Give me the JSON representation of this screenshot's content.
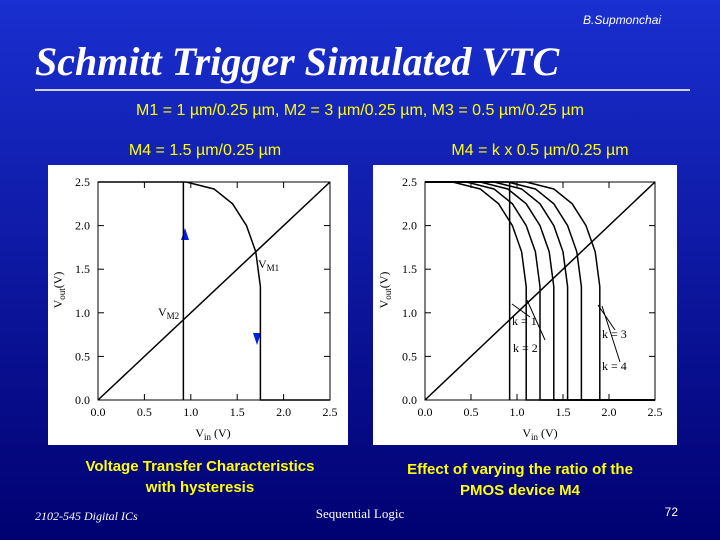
{
  "header": {
    "author": "B.Supmonchai",
    "title": "Schmitt Trigger Simulated VTC",
    "subtitle": "M1 = 1 µm/0.25 µm, M2 = 3 µm/0.25 µm, M3 = 0.5 µm/0.25 µm"
  },
  "chart_data": [
    {
      "type": "line",
      "title": "M4 = 1.5 µm/0.25 µm",
      "xlabel": {
        "symbol": "V",
        "subscript": "in",
        "unit": " (V)"
      },
      "ylabel": {
        "symbol": "V",
        "subscript": "out",
        "unit": "(V)"
      },
      "xlim": [
        0,
        2.5
      ],
      "ylim": [
        0,
        2.5
      ],
      "xticks": [
        {
          "value": 0,
          "label": "0.0"
        },
        0.5,
        {
          "value": 1,
          "label": "1.0"
        },
        1.5,
        {
          "value": 2,
          "label": "2.0"
        },
        2.5
      ],
      "yticks": [
        {
          "value": 0,
          "label": "0.0"
        },
        0.5,
        {
          "value": 1,
          "label": "1.0"
        },
        1.5,
        {
          "value": 2,
          "label": "2.0"
        },
        2.5
      ],
      "series": [
        {
          "color": "#000000",
          "x": [
            0,
            2.5
          ],
          "values": [
            0,
            2.5
          ]
        },
        {
          "color": "#000000",
          "x": [
            0,
            0.95,
            1.25,
            1.45,
            1.6,
            1.7,
            1.75,
            1.75,
            2.5
          ],
          "values": [
            2.5,
            2.5,
            2.42,
            2.25,
            2.0,
            1.7,
            1.3,
            0,
            0
          ]
        },
        {
          "color": "#000000",
          "x": [
            0.92,
            0.92
          ],
          "values": [
            2.5,
            0
          ]
        }
      ],
      "annotations": [
        {
          "symbol": "V",
          "subscript": "M1"
        },
        {
          "symbol": "V",
          "subscript": "M2"
        }
      ],
      "caption": [
        "Voltage Transfer Characteristics",
        "with hysteresis"
      ]
    },
    {
      "type": "line",
      "title": "M4 = k x 0.5 µm/0.25 µm",
      "xlabel": {
        "symbol": "V",
        "subscript": "in",
        "unit": " (V)"
      },
      "ylabel": {
        "symbol": "V",
        "subscript": "out",
        "unit": "(V)"
      },
      "xlim": [
        0,
        2.5
      ],
      "ylim": [
        0,
        2.5
      ],
      "xticks": [
        {
          "value": 0,
          "label": "0.0"
        },
        0.5,
        {
          "value": 1,
          "label": "1.0"
        },
        1.5,
        {
          "value": 2,
          "label": "2.0"
        },
        2.5
      ],
      "yticks": [
        {
          "value": 0,
          "label": "0.0"
        },
        0.5,
        {
          "value": 1,
          "label": "1.0"
        },
        1.5,
        {
          "value": 2,
          "label": "2.0"
        },
        2.5
      ],
      "series": [
        {
          "color": "#000000",
          "x": [
            0,
            2.5
          ],
          "values": [
            0,
            2.5
          ]
        },
        {
          "color": "#000000",
          "x": [
            0.92,
            0.92
          ],
          "values": [
            2.5,
            0
          ]
        },
        {
          "color": "#000000",
          "x": [
            0,
            0.3,
            0.6,
            0.8,
            0.95,
            1.05,
            1.1,
            1.1,
            2.5
          ],
          "values": [
            2.5,
            2.5,
            2.42,
            2.25,
            2.0,
            1.7,
            1.3,
            0,
            0
          ]
        },
        {
          "color": "#000000",
          "x": [
            0,
            0.45,
            0.75,
            0.95,
            1.1,
            1.2,
            1.25,
            1.25,
            2.5
          ],
          "values": [
            2.5,
            2.5,
            2.42,
            2.25,
            2.0,
            1.7,
            1.3,
            0,
            0
          ]
        },
        {
          "color": "#000000",
          "x": [
            0,
            0.6,
            0.9,
            1.1,
            1.25,
            1.35,
            1.4,
            1.4,
            2.5
          ],
          "values": [
            2.5,
            2.5,
            2.42,
            2.25,
            2.0,
            1.7,
            1.3,
            0,
            0
          ]
        },
        {
          "color": "#000000",
          "x": [
            0,
            0.75,
            1.05,
            1.25,
            1.4,
            1.5,
            1.55,
            1.55,
            2.5
          ],
          "values": [
            2.5,
            2.5,
            2.42,
            2.25,
            2.0,
            1.7,
            1.3,
            0,
            0
          ]
        },
        {
          "color": "#000000",
          "x": [
            0,
            0.9,
            1.2,
            1.4,
            1.55,
            1.65,
            1.7,
            1.7,
            2.5
          ],
          "values": [
            2.5,
            2.5,
            2.42,
            2.25,
            2.0,
            1.7,
            1.3,
            0,
            0
          ]
        },
        {
          "color": "#000000",
          "x": [
            0,
            1.1,
            1.4,
            1.6,
            1.75,
            1.85,
            1.9,
            1.9,
            2.5
          ],
          "values": [
            2.5,
            2.5,
            2.42,
            2.25,
            2.0,
            1.7,
            1.3,
            0,
            0
          ]
        }
      ],
      "annotations": [
        "k = 1",
        "k = 2",
        "k = 3",
        "k = 4"
      ],
      "caption": [
        "Effect of varying the ratio of the",
        "PMOS device M4"
      ]
    }
  ],
  "footer": {
    "course": "2102-545 Digital ICs",
    "topic": "Sequential Logic",
    "page": "72"
  }
}
